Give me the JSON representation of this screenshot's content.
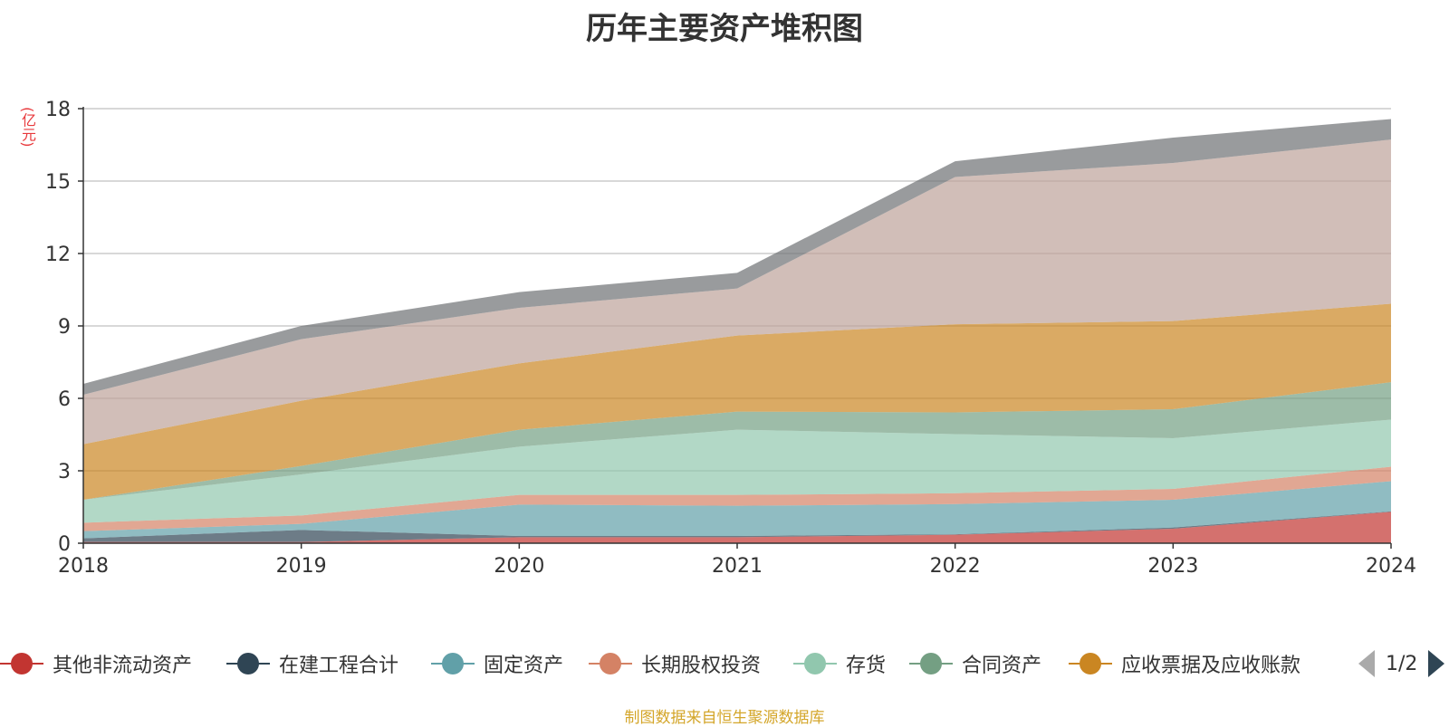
{
  "title": "历年主要资产堆积图",
  "unit_label": "(亿元)",
  "source_note": "制图数据来自恒生聚源数据库",
  "legend_pager": {
    "text": "1/2",
    "prev_icon": "chevron-left-icon",
    "next_icon": "chevron-right-icon"
  },
  "chart_data": {
    "type": "area",
    "stacked": true,
    "title": "历年主要资产堆积图",
    "ylabel": "(亿元)",
    "xlabel": "",
    "x": [
      "2018",
      "2019",
      "2020",
      "2021",
      "2022",
      "2023",
      "2024"
    ],
    "ylim": [
      0,
      18
    ],
    "yticks": [
      0,
      3,
      6,
      9,
      12,
      15,
      18
    ],
    "grid": true,
    "legend_position": "bottom",
    "series": [
      {
        "name": "其他非流动资产",
        "color": "#c23531",
        "values": [
          0.05,
          0.05,
          0.25,
          0.25,
          0.35,
          0.6,
          1.3
        ]
      },
      {
        "name": "在建工程合计",
        "color": "#2f4554",
        "values": [
          0.15,
          0.5,
          0.05,
          0.05,
          0.02,
          0.05,
          0.02
        ]
      },
      {
        "name": "固定资产",
        "color": "#61a0a8",
        "values": [
          0.3,
          0.25,
          1.3,
          1.25,
          1.25,
          1.15,
          1.25
        ]
      },
      {
        "name": "长期股权投资",
        "color": "#d48265",
        "values": [
          0.35,
          0.35,
          0.4,
          0.45,
          0.45,
          0.45,
          0.6
        ]
      },
      {
        "name": "存货",
        "color": "#91c7ae",
        "values": [
          0.95,
          1.7,
          2.0,
          2.7,
          2.45,
          2.1,
          1.95
        ]
      },
      {
        "name": "合同资产",
        "color": "#749f83",
        "values": [
          0.0,
          0.35,
          0.7,
          0.75,
          0.9,
          1.2,
          1.55
        ]
      },
      {
        "name": "应收票据及应收账款",
        "color": "#ca8622",
        "values": [
          2.3,
          2.7,
          2.75,
          3.15,
          3.65,
          3.65,
          3.25
        ]
      },
      {
        "name": "",
        "color": "#bda29a",
        "values": [
          2.05,
          2.55,
          2.3,
          1.95,
          6.1,
          6.55,
          6.8
        ]
      },
      {
        "name": "",
        "color": "#6e7074",
        "values": [
          0.45,
          0.55,
          0.65,
          0.65,
          0.65,
          1.05,
          0.85
        ]
      }
    ]
  }
}
